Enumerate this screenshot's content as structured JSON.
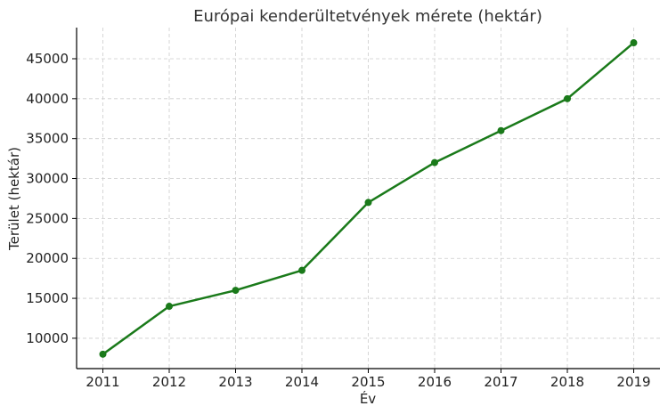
{
  "chart_data": {
    "type": "line",
    "title": "Európai kenderültetvények mérete (hektár)",
    "xlabel": "Év",
    "ylabel": "Terület (hektár)",
    "x": [
      "2011",
      "2012",
      "2013",
      "2014",
      "2015",
      "2016",
      "2017",
      "2018",
      "2019"
    ],
    "series": [
      {
        "values": [
          8000,
          14000,
          16000,
          18500,
          27000,
          32000,
          36000,
          40000,
          47000
        ]
      }
    ],
    "yticks": [
      10000,
      15000,
      20000,
      25000,
      30000,
      35000,
      40000,
      45000
    ],
    "ylim": [
      6200,
      48900
    ],
    "grid": true,
    "line_color": "#1a7a1a"
  }
}
